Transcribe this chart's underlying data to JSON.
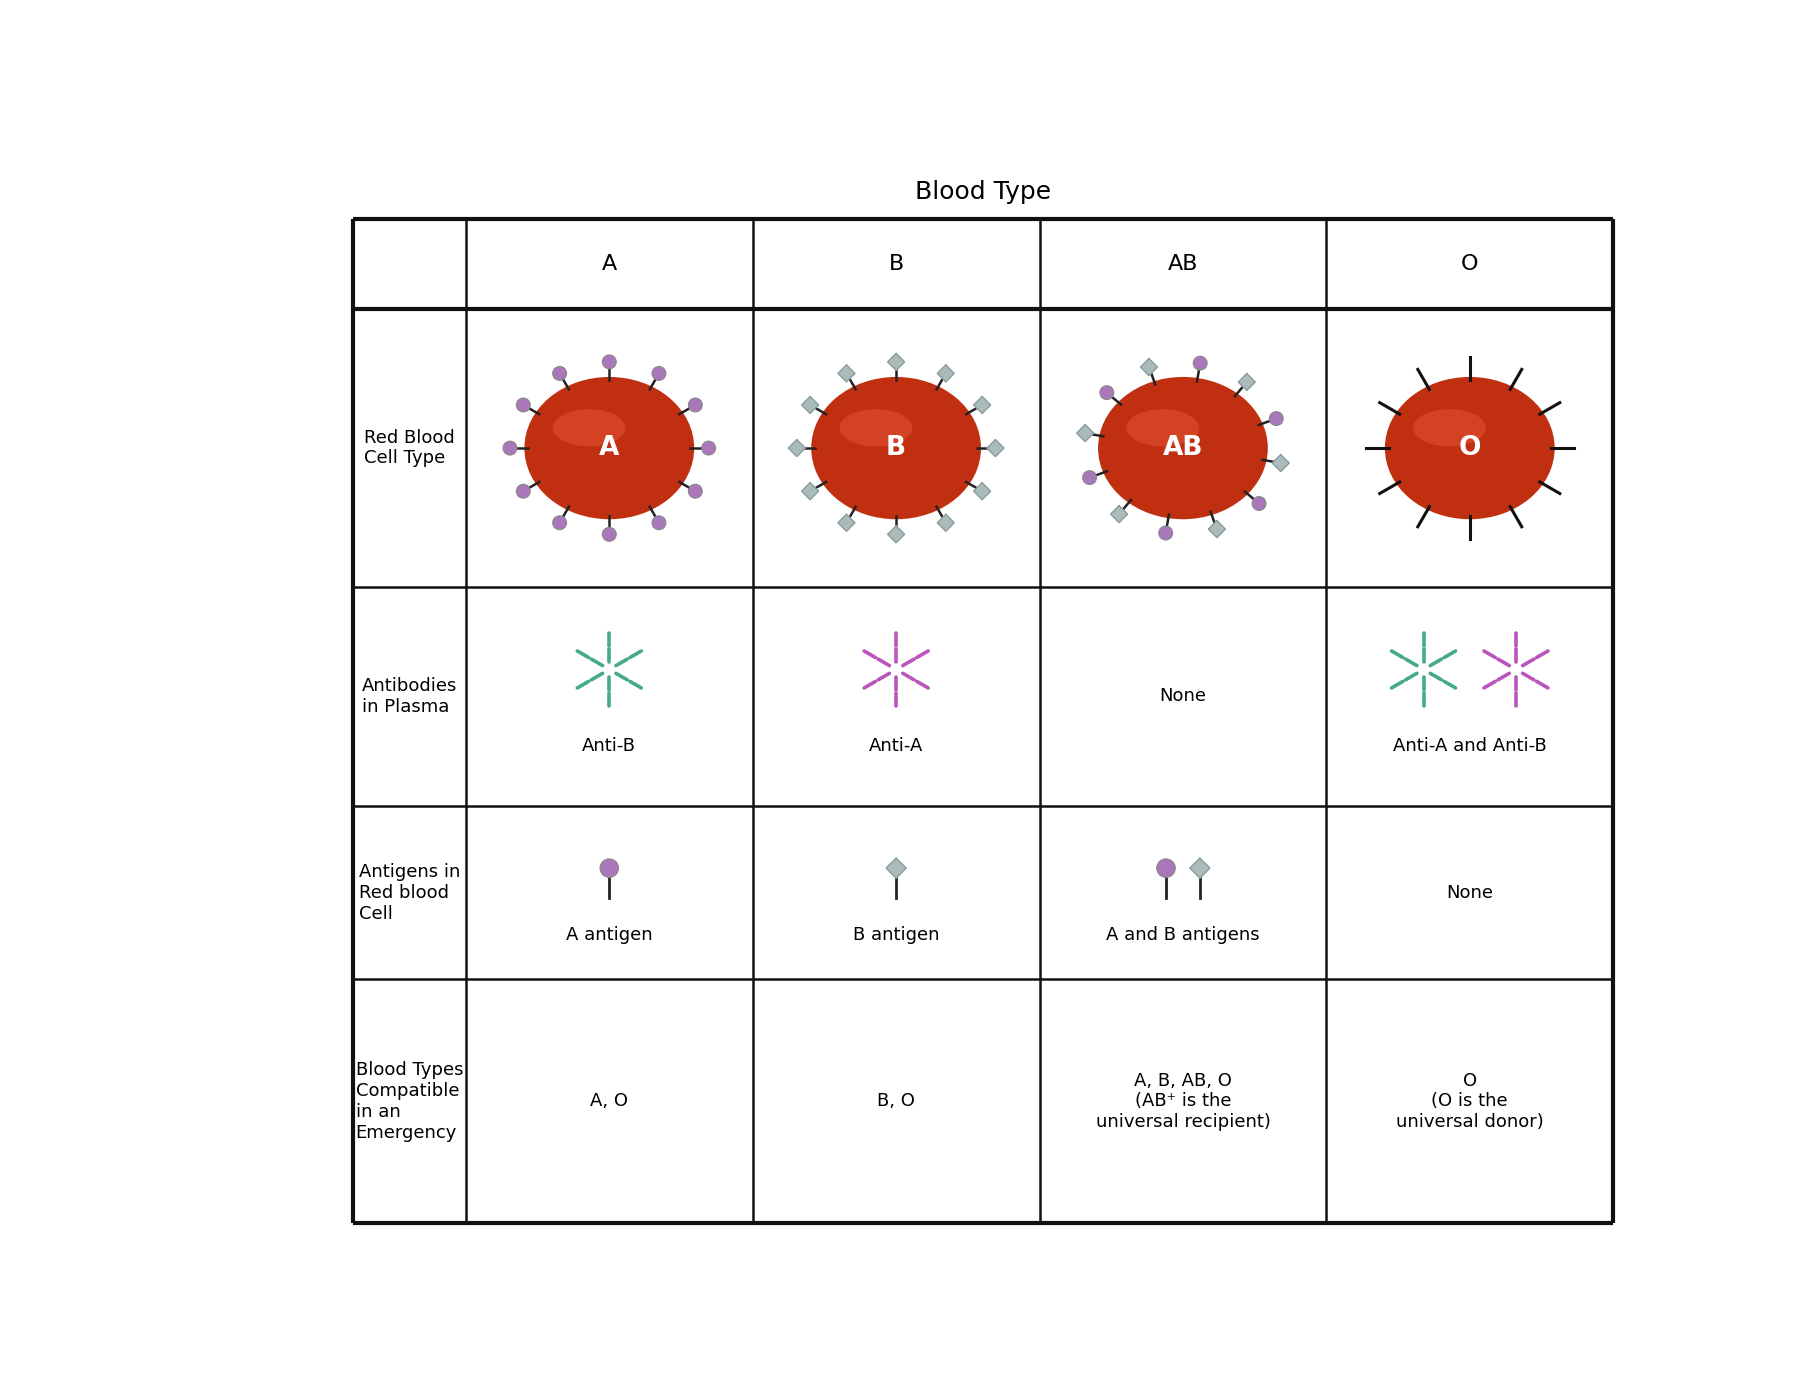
{
  "title": "Blood Type",
  "col_headers": [
    "A",
    "B",
    "AB",
    "O"
  ],
  "row_headers": [
    "Red Blood\nCell Type",
    "Antibodies\nin Plasma",
    "Antigens in\nRed blood\nCell",
    "Blood Types\nCompatible\nin an\nEmergency"
  ],
  "antibody_labels": [
    "Anti-B",
    "Anti-A",
    "None",
    "Anti-A and Anti-B"
  ],
  "antigen_labels": [
    "A antigen",
    "B antigen",
    "A and B antigens",
    "None"
  ],
  "compatible_labels": [
    "A, O",
    "B, O",
    "A, B, AB, O\n(AB⁺ is the\nuniversal recipient)",
    "O\n(O is the\nuniversal donor)"
  ],
  "rbc_label_color": "#ffffff",
  "rbc_outer_color": "#cc3311",
  "rbc_mid_color": "#bb2200",
  "rbc_inner_color": "#993300",
  "antigen_a_color": "#aa77bb",
  "antigen_b_color": "#aabbbb",
  "antigen_b_edge_color": "#889999",
  "antibody_b_color": "#44aa88",
  "antibody_a_color": "#bb55bb",
  "line_color": "#111111",
  "bg_color": "#ffffff",
  "grid_color": "#111111",
  "title_fontsize": 18,
  "header_fontsize": 16,
  "label_fontsize": 13,
  "row_header_fontsize": 13
}
